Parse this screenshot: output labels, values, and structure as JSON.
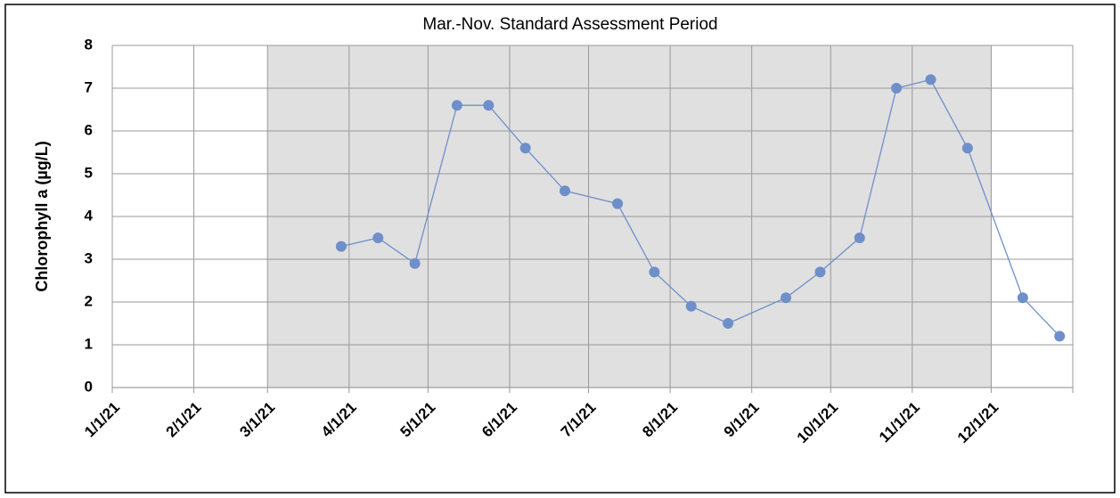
{
  "chart_data": {
    "type": "line",
    "title": "Mar.-Nov. Standard Assessment Period",
    "ylabel": "Chlorophyll a (µg/L)",
    "x": [
      "2021-03-29",
      "2021-04-12",
      "2021-04-26",
      "2021-05-12",
      "2021-05-24",
      "2021-06-07",
      "2021-06-22",
      "2021-07-12",
      "2021-07-26",
      "2021-08-09",
      "2021-08-23",
      "2021-09-14",
      "2021-09-27",
      "2021-10-12",
      "2021-10-26",
      "2021-11-08",
      "2021-11-22",
      "2021-12-13",
      "2021-12-27"
    ],
    "series": [
      {
        "name": "Chlorophyll a",
        "color": "#6f8fca",
        "values": [
          3.3,
          3.5,
          2.9,
          6.6,
          6.6,
          5.6,
          4.6,
          4.3,
          2.7,
          1.9,
          1.5,
          2.1,
          2.7,
          3.5,
          7.0,
          7.2,
          5.6,
          2.1,
          1.2
        ]
      }
    ],
    "shade": [
      "2021-03-01",
      "2021-12-01"
    ],
    "shade_color": "#e0e0e0",
    "xlim": [
      "2021-01-01",
      "2022-01-01"
    ],
    "xticks": [
      {
        "value": "2021-01-01",
        "label": "1/1/21"
      },
      {
        "value": "2021-02-01",
        "label": "2/1/21"
      },
      {
        "value": "2021-03-01",
        "label": "3/1/21"
      },
      {
        "value": "2021-04-01",
        "label": "4/1/21"
      },
      {
        "value": "2021-05-01",
        "label": "5/1/21"
      },
      {
        "value": "2021-06-01",
        "label": "6/1/21"
      },
      {
        "value": "2021-07-01",
        "label": "7/1/21"
      },
      {
        "value": "2021-08-01",
        "label": "8/1/21"
      },
      {
        "value": "2021-09-01",
        "label": "9/1/21"
      },
      {
        "value": "2021-10-01",
        "label": "10/1/21"
      },
      {
        "value": "2021-11-01",
        "label": "11/1/21"
      },
      {
        "value": "2021-12-01",
        "label": "12/1/21"
      }
    ],
    "ylim": [
      0,
      8
    ],
    "yticks": [
      0,
      1,
      2,
      3,
      4,
      5,
      6,
      7,
      8
    ],
    "grid": true
  }
}
